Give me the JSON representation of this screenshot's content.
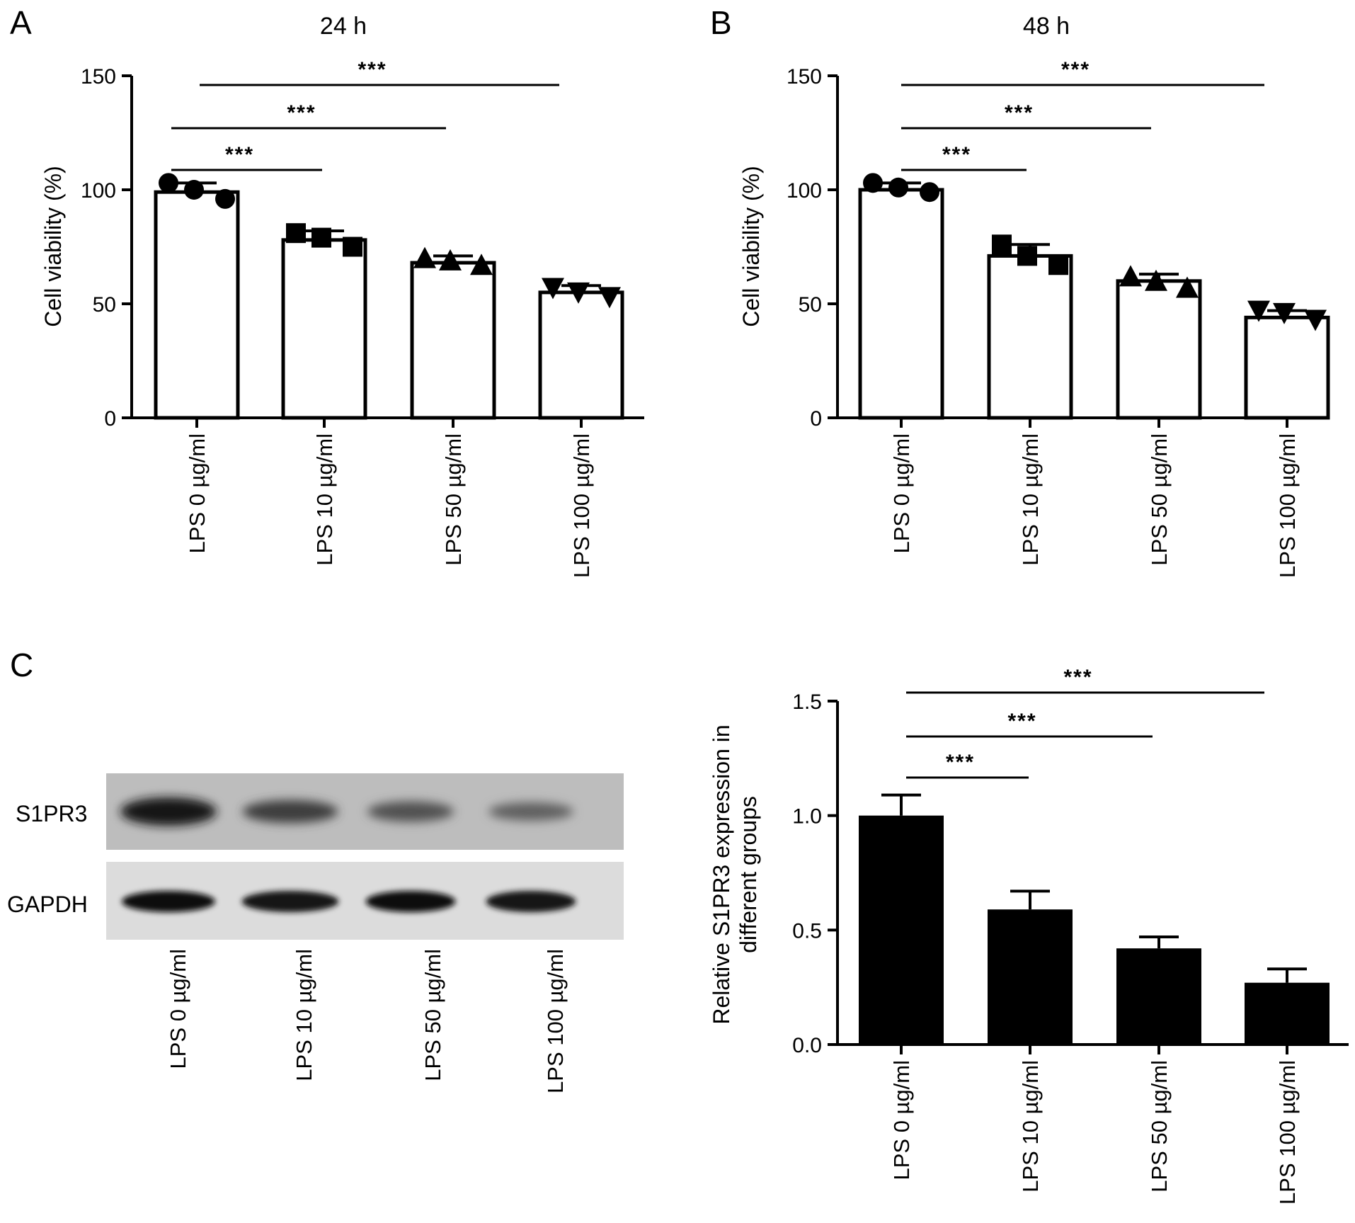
{
  "panels": {
    "a": {
      "letter": "A"
    },
    "b": {
      "letter": "B"
    },
    "c": {
      "letter": "C"
    }
  },
  "blot": {
    "rows": [
      "S1PR3",
      "GAPDH"
    ],
    "lanes": [
      "LPS 0 µg/ml",
      "LPS 10 µg/ml",
      "LPS 50 µg/ml",
      "LPS 100 µg/ml"
    ],
    "band_intensity_s1pr3": [
      1.0,
      0.62,
      0.45,
      0.3
    ],
    "band_intensity_gapdh": [
      1.0,
      0.95,
      0.97,
      0.95
    ]
  },
  "chart_data": [
    {
      "id": "A",
      "type": "bar",
      "title": "24 h",
      "xlabel": "",
      "ylabel": "Cell viability (%)",
      "ylim": [
        0,
        150
      ],
      "yticks": [
        0,
        50,
        100,
        150
      ],
      "categories": [
        "LPS 0 µg/ml",
        "LPS 10 µg/ml",
        "LPS 50 µg/ml",
        "LPS 100 µg/ml"
      ],
      "values": [
        99,
        78,
        68,
        55
      ],
      "error_upper": [
        103,
        82,
        71,
        58
      ],
      "points": [
        [
          103,
          100,
          96
        ],
        [
          81,
          79,
          75
        ],
        [
          70,
          69,
          67
        ],
        [
          57,
          55,
          53
        ]
      ],
      "markers": [
        "circle",
        "square",
        "triangle",
        "triangle-down"
      ],
      "bar_fill": "#ffffff",
      "significance": [
        {
          "from": 0,
          "to": 1,
          "label": "***"
        },
        {
          "from": 0,
          "to": 2,
          "label": "***"
        },
        {
          "from": 0,
          "to": 3,
          "label": "***"
        }
      ]
    },
    {
      "id": "B",
      "type": "bar",
      "title": "48 h",
      "xlabel": "",
      "ylabel": "Cell viability (%)",
      "ylim": [
        0,
        150
      ],
      "yticks": [
        0,
        50,
        100,
        150
      ],
      "categories": [
        "LPS 0 µg/ml",
        "LPS 10 µg/ml",
        "LPS 50 µg/ml",
        "LPS 100 µg/ml"
      ],
      "values": [
        100,
        71,
        60,
        44
      ],
      "error_upper": [
        103,
        76,
        63,
        47
      ],
      "points": [
        [
          103,
          101,
          99
        ],
        [
          76,
          71,
          67
        ],
        [
          62,
          60,
          57
        ],
        [
          47,
          46,
          43
        ]
      ],
      "markers": [
        "circle",
        "square",
        "triangle",
        "triangle-down"
      ],
      "bar_fill": "#ffffff",
      "significance": [
        {
          "from": 0,
          "to": 1,
          "label": "***"
        },
        {
          "from": 0,
          "to": 2,
          "label": "***"
        },
        {
          "from": 0,
          "to": 3,
          "label": "***"
        }
      ]
    },
    {
      "id": "C",
      "type": "bar",
      "title": "",
      "xlabel": "",
      "ylabel": "Relative S1PR3 expression in different groups",
      "ylabel_lines": [
        "Relative S1PR3 expression in",
        "different groups"
      ],
      "ylim": [
        0,
        1.5
      ],
      "yticks": [
        0.0,
        0.5,
        1.0,
        1.5
      ],
      "ytick_labels": [
        "0.0",
        "0.5",
        "1.0",
        "1.5"
      ],
      "categories": [
        "LPS 0 µg/ml",
        "LPS 10 µg/ml",
        "LPS 50 µg/ml",
        "LPS 100 µg/ml"
      ],
      "values": [
        1.0,
        0.59,
        0.42,
        0.27
      ],
      "error_upper": [
        1.09,
        0.67,
        0.47,
        0.33
      ],
      "bar_fill": "#000000",
      "significance": [
        {
          "from": 0,
          "to": 1,
          "label": "***"
        },
        {
          "from": 0,
          "to": 2,
          "label": "***"
        },
        {
          "from": 0,
          "to": 3,
          "label": "***"
        }
      ]
    }
  ]
}
